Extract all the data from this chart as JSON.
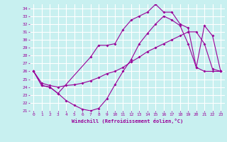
{
  "xlabel": "Windchill (Refroidissement éolien,°C)",
  "xlim": [
    -0.5,
    23.5
  ],
  "ylim": [
    21.0,
    34.5
  ],
  "xticks": [
    0,
    1,
    2,
    3,
    4,
    5,
    6,
    7,
    8,
    9,
    10,
    11,
    12,
    13,
    14,
    15,
    16,
    17,
    18,
    19,
    20,
    21,
    22,
    23
  ],
  "yticks": [
    21,
    22,
    23,
    24,
    25,
    26,
    27,
    28,
    29,
    30,
    31,
    32,
    33,
    34
  ],
  "background_color": "#c8f0f0",
  "grid_color": "#ffffff",
  "line_color": "#990099",
  "line1_x": [
    0,
    1,
    2,
    3,
    4,
    5,
    6,
    7,
    8,
    9,
    10,
    11,
    12,
    13,
    14,
    15,
    16,
    17,
    18,
    19,
    20,
    21,
    22,
    23
  ],
  "line1_y": [
    26.0,
    24.2,
    24.0,
    23.2,
    22.3,
    21.7,
    21.2,
    21.0,
    21.3,
    22.5,
    24.3,
    26.0,
    27.5,
    29.5,
    30.8,
    32.0,
    33.0,
    32.5,
    31.8,
    29.5,
    26.5,
    26.0,
    26.0,
    26.0
  ],
  "line2_x": [
    0,
    1,
    2,
    3,
    4,
    5,
    6,
    7,
    8,
    9,
    10,
    11,
    12,
    13,
    14,
    15,
    16,
    17,
    18,
    19,
    20,
    21,
    22,
    23
  ],
  "line2_y": [
    26.0,
    24.5,
    24.2,
    24.0,
    24.2,
    24.3,
    24.5,
    24.8,
    25.2,
    25.7,
    26.0,
    26.5,
    27.2,
    27.8,
    28.5,
    29.0,
    29.5,
    30.0,
    30.5,
    31.0,
    31.0,
    29.5,
    26.3,
    26.0
  ],
  "line3_x": [
    0,
    1,
    2,
    3,
    7,
    8,
    9,
    10,
    11,
    12,
    13,
    14,
    15,
    16,
    17,
    18,
    19,
    20,
    21,
    22,
    23
  ],
  "line3_y": [
    26.0,
    24.2,
    24.0,
    23.2,
    27.8,
    29.3,
    29.3,
    29.5,
    31.3,
    32.5,
    33.0,
    33.5,
    34.5,
    33.5,
    33.5,
    32.0,
    31.5,
    26.5,
    31.8,
    30.5,
    26.0
  ]
}
